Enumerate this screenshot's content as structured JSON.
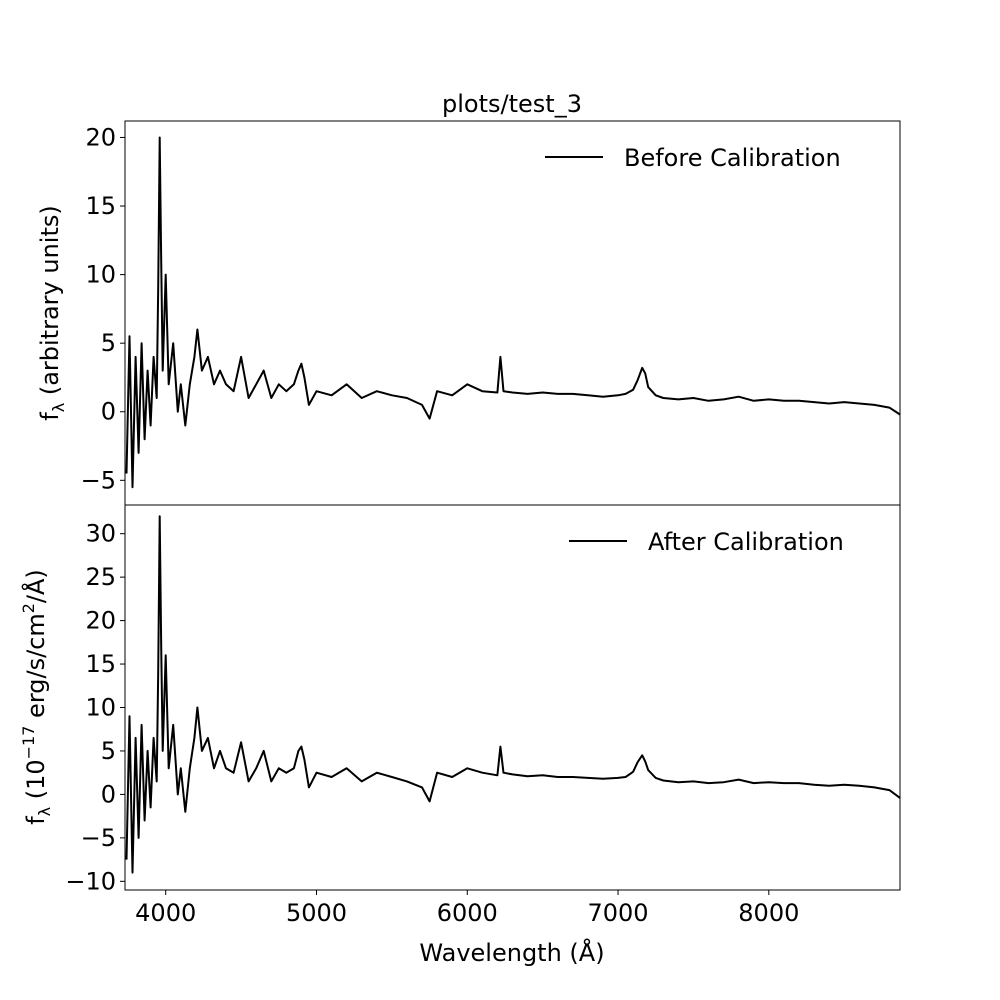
{
  "figure": {
    "title": "plots/test_3",
    "xlabel": "Wavelength (Å)"
  },
  "chart_data": [
    {
      "type": "line",
      "title": "plots/test_3",
      "ylabel_main": "f",
      "ylabel_sub": "λ",
      "ylabel_rest": " (arbitrary units)",
      "xlabel": "",
      "xlim": [
        3730,
        8870
      ],
      "ylim": [
        -6.8,
        21.2
      ],
      "xticks": [],
      "yticks": [
        -5,
        0,
        5,
        10,
        15,
        20
      ],
      "ytick_labels": [
        "−5",
        "0",
        "5",
        "10",
        "15",
        "20"
      ],
      "legend": {
        "placement": "top-right",
        "label": "Before Calibration"
      },
      "grid": false,
      "series": [
        {
          "name": "Before Calibration",
          "color": "#000000",
          "x": [
            3740,
            3760,
            3780,
            3800,
            3820,
            3840,
            3860,
            3880,
            3900,
            3920,
            3940,
            3950,
            3960,
            3970,
            3980,
            4000,
            4020,
            4050,
            4080,
            4100,
            4130,
            4160,
            4190,
            4210,
            4240,
            4280,
            4320,
            4360,
            4400,
            4450,
            4500,
            4550,
            4600,
            4650,
            4700,
            4750,
            4800,
            4850,
            4880,
            4900,
            4920,
            4950,
            5000,
            5100,
            5200,
            5300,
            5400,
            5500,
            5600,
            5700,
            5750,
            5800,
            5900,
            6000,
            6100,
            6200,
            6220,
            6240,
            6300,
            6400,
            6500,
            6600,
            6700,
            6800,
            6900,
            7000,
            7050,
            7100,
            7130,
            7160,
            7180,
            7200,
            7250,
            7300,
            7400,
            7500,
            7600,
            7700,
            7800,
            7900,
            8000,
            8100,
            8200,
            8300,
            8400,
            8500,
            8600,
            8700,
            8800,
            8870
          ],
          "y": [
            -4.5,
            5.5,
            -5.5,
            4,
            -3,
            5,
            -2,
            3,
            -1,
            4,
            1,
            9,
            20,
            11,
            3,
            10,
            2,
            5,
            0,
            2,
            -1,
            2,
            4,
            6,
            3,
            4,
            2,
            3,
            2,
            1.5,
            4,
            1,
            2,
            3,
            1,
            2,
            1.5,
            2,
            3,
            3.5,
            2.5,
            0.5,
            1.5,
            1.2,
            2,
            1,
            1.5,
            1.2,
            1,
            0.5,
            -0.5,
            1.5,
            1.2,
            2,
            1.5,
            1.4,
            4,
            1.5,
            1.4,
            1.3,
            1.4,
            1.3,
            1.3,
            1.2,
            1.1,
            1.2,
            1.3,
            1.6,
            2.3,
            3.2,
            2.8,
            1.8,
            1.2,
            1,
            0.9,
            1.0,
            0.8,
            0.9,
            1.1,
            0.8,
            0.9,
            0.8,
            0.8,
            0.7,
            0.6,
            0.7,
            0.6,
            0.5,
            0.3,
            -0.2
          ]
        }
      ]
    },
    {
      "type": "line",
      "ylabel_main": "f",
      "ylabel_sub": "λ",
      "ylabel_rest": " (10",
      "ylabel_exp": "−17",
      "ylabel_rest2": " erg/s/cm",
      "ylabel_exp2": "2",
      "ylabel_rest3": "/Å)",
      "xlabel": "Wavelength (Å)",
      "xlim": [
        3730,
        8870
      ],
      "ylim": [
        -11,
        33.3
      ],
      "xticks": [
        4000,
        5000,
        6000,
        7000,
        8000
      ],
      "xtick_labels": [
        "4000",
        "5000",
        "6000",
        "7000",
        "8000"
      ],
      "yticks": [
        -10,
        -5,
        0,
        5,
        10,
        15,
        20,
        25,
        30
      ],
      "ytick_labels": [
        "−10",
        "−5",
        "0",
        "5",
        "10",
        "15",
        "20",
        "25",
        "30"
      ],
      "legend": {
        "placement": "top-right",
        "label": "After Calibration"
      },
      "grid": false,
      "series": [
        {
          "name": "After Calibration",
          "color": "#000000",
          "x": [
            3740,
            3760,
            3780,
            3800,
            3820,
            3840,
            3860,
            3880,
            3900,
            3920,
            3940,
            3950,
            3960,
            3970,
            3980,
            4000,
            4020,
            4050,
            4080,
            4100,
            4130,
            4160,
            4190,
            4210,
            4240,
            4280,
            4320,
            4360,
            4400,
            4450,
            4500,
            4550,
            4600,
            4650,
            4700,
            4750,
            4800,
            4850,
            4880,
            4900,
            4920,
            4950,
            5000,
            5100,
            5200,
            5300,
            5400,
            5500,
            5600,
            5700,
            5750,
            5800,
            5900,
            6000,
            6100,
            6200,
            6220,
            6240,
            6300,
            6400,
            6500,
            6600,
            6700,
            6800,
            6900,
            7000,
            7050,
            7100,
            7130,
            7160,
            7180,
            7200,
            7250,
            7300,
            7400,
            7500,
            7600,
            7700,
            7800,
            7900,
            8000,
            8100,
            8200,
            8300,
            8400,
            8500,
            8600,
            8700,
            8800,
            8870
          ],
          "y": [
            -7.5,
            9,
            -9,
            6.5,
            -5,
            8,
            -3,
            5,
            -1.5,
            6.5,
            1.5,
            14,
            32,
            17,
            5,
            16,
            3,
            8,
            0,
            3,
            -2,
            3,
            6.5,
            10,
            5,
            6.5,
            3,
            5,
            3,
            2.5,
            6,
            1.5,
            3,
            5,
            1.5,
            3,
            2.5,
            3,
            5,
            5.5,
            4,
            0.8,
            2.5,
            2,
            3,
            1.5,
            2.5,
            2,
            1.5,
            0.8,
            -0.8,
            2.5,
            2,
            3,
            2.5,
            2.2,
            5.5,
            2.5,
            2.3,
            2.1,
            2.2,
            2,
            2,
            1.9,
            1.8,
            1.9,
            2,
            2.6,
            3.7,
            4.5,
            3.8,
            2.8,
            1.9,
            1.6,
            1.4,
            1.5,
            1.3,
            1.4,
            1.7,
            1.3,
            1.4,
            1.3,
            1.3,
            1.1,
            1,
            1.1,
            1,
            0.8,
            0.5,
            -0.4
          ]
        }
      ]
    }
  ]
}
